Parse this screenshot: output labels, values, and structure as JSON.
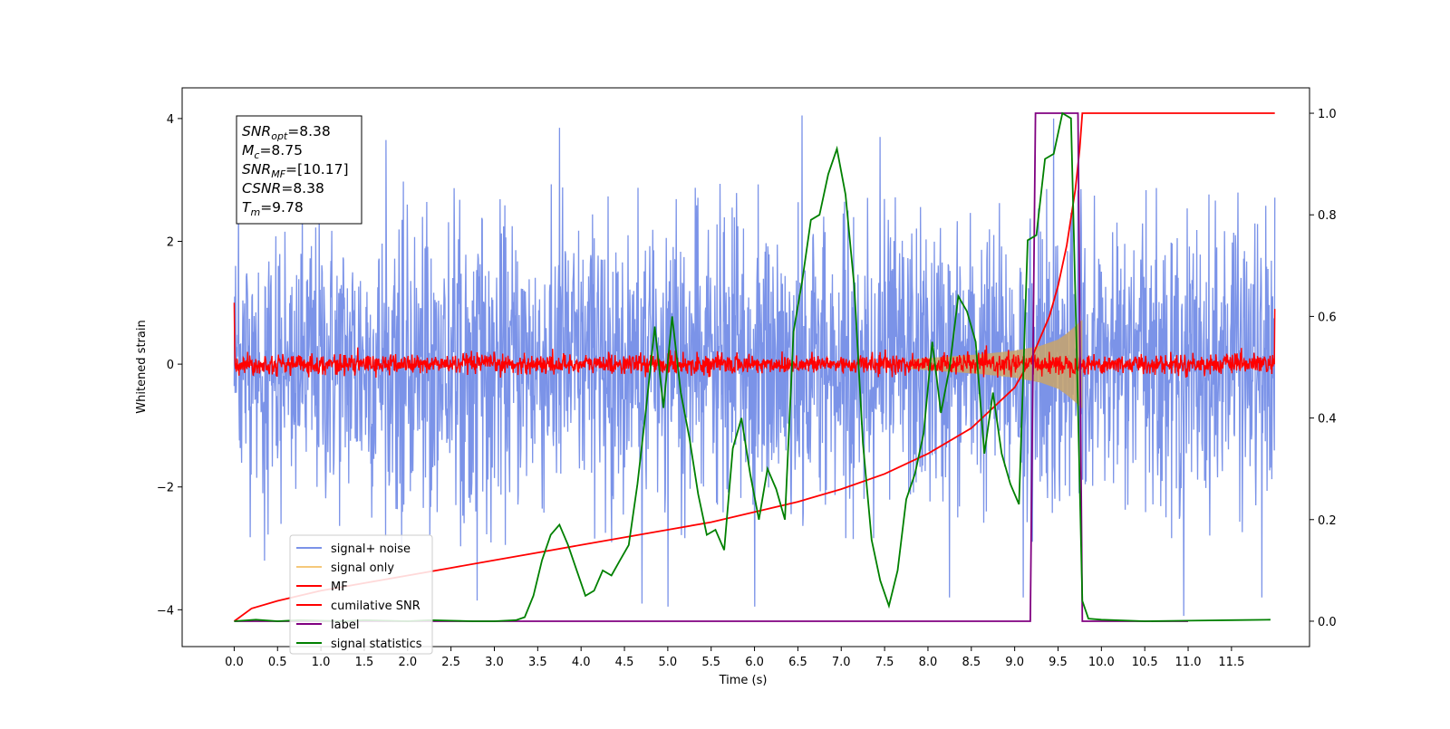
{
  "chart_data": {
    "type": "line",
    "title": "",
    "xlabel": "Time (s)",
    "ylabel": "Whitened strain",
    "y2label": "",
    "xlim": [
      -0.6,
      12.4
    ],
    "ylim": [
      -4.6,
      4.5
    ],
    "y2lim": [
      -0.05,
      1.05
    ],
    "x_ticks": [
      0.0,
      0.5,
      1.0,
      1.5,
      2.0,
      2.5,
      3.0,
      3.5,
      4.0,
      4.5,
      5.0,
      5.5,
      6.0,
      6.5,
      7.0,
      7.5,
      8.0,
      8.5,
      9.0,
      9.5,
      10.0,
      10.5,
      11.0,
      11.5
    ],
    "x_tick_labels": [
      "0.0",
      "0.5",
      "1.0",
      "1.5",
      "2.0",
      "2.5",
      "3.0",
      "3.5",
      "4.0",
      "4.5",
      "5.0",
      "5.5",
      "6.0",
      "6.5",
      "7.0",
      "7.5",
      "8.0",
      "8.5",
      "9.0",
      "9.5",
      "10.0",
      "10.5",
      "11.0",
      "11.5"
    ],
    "y_ticks": [
      -4,
      -2,
      0,
      2,
      4
    ],
    "y_tick_labels": [
      "−4",
      "−2",
      "0",
      "2",
      "4"
    ],
    "y2_ticks": [
      0.0,
      0.2,
      0.4,
      0.6,
      0.8,
      1.0
    ],
    "y2_tick_labels": [
      "0.0",
      "0.2",
      "0.4",
      "0.6",
      "0.8",
      "1.0"
    ],
    "grid": false,
    "legend_placement": "lower-left",
    "annotation": {
      "snr_opt": {
        "base": "SNR",
        "sub": "opt",
        "value": "=8.38"
      },
      "mc": {
        "base": "M",
        "sub": "c",
        "value": "=8.75"
      },
      "snr_mf": {
        "base": "SNR",
        "sub": "MF",
        "value": "=[10.17]"
      },
      "csnr": {
        "base": "CSNR",
        "sub": "",
        "value": "=8.38"
      },
      "tm": {
        "base": "T",
        "sub": "m",
        "value": "=9.78"
      }
    },
    "series": [
      {
        "name": "signal+ noise",
        "axis": "left",
        "color": "#7b93e8",
        "style": "noise",
        "x_range": [
          0.0,
          12.0
        ],
        "envelope_abs": 3.0,
        "peaks": [
          [
            0.05,
            2.65
          ],
          [
            0.35,
            -3.2
          ],
          [
            1.75,
            3.65
          ],
          [
            2.8,
            -3.85
          ],
          [
            3.75,
            3.85
          ],
          [
            4.7,
            -3.9
          ],
          [
            5.0,
            -3.95
          ],
          [
            6.0,
            -3.95
          ],
          [
            6.55,
            4.05
          ],
          [
            7.45,
            3.7
          ],
          [
            8.25,
            -3.8
          ],
          [
            9.1,
            -3.8
          ],
          [
            9.45,
            4.0
          ],
          [
            10.95,
            -4.1
          ],
          [
            11.85,
            -3.8
          ]
        ]
      },
      {
        "name": "signal only",
        "axis": "left",
        "color": "#f5c87a",
        "style": "chirp",
        "x": [
          7.8,
          8.2,
          8.6,
          9.0,
          9.3,
          9.5,
          9.6,
          9.7,
          9.76,
          9.78
        ],
        "amplitude": [
          0.08,
          0.12,
          0.16,
          0.22,
          0.3,
          0.4,
          0.5,
          0.62,
          0.7,
          0.72
        ]
      },
      {
        "name": "MF",
        "axis": "left",
        "color": "#ff0000",
        "style": "noise",
        "x_range": [
          0.0,
          12.0
        ],
        "envelope_abs": 0.22,
        "edges": [
          [
            0.0,
            1.0
          ],
          [
            12.0,
            0.9
          ]
        ]
      },
      {
        "name": "cumilative SNR",
        "axis": "right",
        "color": "#ff0000",
        "style": "line",
        "x": [
          0.0,
          0.2,
          0.5,
          1.0,
          1.5,
          2.0,
          2.5,
          3.0,
          3.5,
          4.0,
          4.5,
          5.0,
          5.5,
          6.0,
          6.5,
          7.0,
          7.5,
          8.0,
          8.5,
          9.0,
          9.2,
          9.4,
          9.5,
          9.6,
          9.7,
          9.75,
          9.78,
          10.5,
          11.0,
          11.5,
          12.0
        ],
        "values": [
          0.0,
          0.025,
          0.04,
          0.06,
          0.075,
          0.09,
          0.105,
          0.12,
          0.135,
          0.15,
          0.165,
          0.18,
          0.195,
          0.215,
          0.235,
          0.26,
          0.29,
          0.33,
          0.38,
          0.46,
          0.52,
          0.6,
          0.66,
          0.74,
          0.85,
          0.93,
          1.0,
          1.0,
          1.0,
          1.0,
          1.0
        ]
      },
      {
        "name": "label",
        "axis": "right",
        "color": "#800080",
        "style": "line",
        "x": [
          0.0,
          9.18,
          9.24,
          9.73,
          9.78,
          11.0
        ],
        "values": [
          0.0,
          0.0,
          1.0,
          1.0,
          0.0,
          0.0
        ]
      },
      {
        "name": "signal statistics",
        "axis": "right",
        "color": "#008000",
        "style": "line",
        "x": [
          0.0,
          0.25,
          0.5,
          0.75,
          1.0,
          1.25,
          1.5,
          1.75,
          2.0,
          2.25,
          2.5,
          2.75,
          3.0,
          3.25,
          3.35,
          3.45,
          3.55,
          3.65,
          3.75,
          3.85,
          3.95,
          4.05,
          4.15,
          4.25,
          4.35,
          4.45,
          4.55,
          4.65,
          4.75,
          4.85,
          4.95,
          5.05,
          5.15,
          5.25,
          5.35,
          5.45,
          5.55,
          5.65,
          5.75,
          5.85,
          5.95,
          6.05,
          6.15,
          6.25,
          6.35,
          6.45,
          6.55,
          6.65,
          6.75,
          6.85,
          6.95,
          7.05,
          7.15,
          7.25,
          7.35,
          7.45,
          7.55,
          7.65,
          7.75,
          7.85,
          7.95,
          8.05,
          8.15,
          8.25,
          8.35,
          8.45,
          8.55,
          8.65,
          8.75,
          8.85,
          8.95,
          9.05,
          9.15,
          9.25,
          9.35,
          9.45,
          9.55,
          9.65,
          9.72,
          9.78,
          9.85,
          10.0,
          10.5,
          11.0,
          11.5,
          11.95
        ],
        "values": [
          0.0,
          0.003,
          0.0,
          0.002,
          0.001,
          0.0,
          0.002,
          0.001,
          0.0,
          0.002,
          0.001,
          0.0,
          0.0,
          0.002,
          0.008,
          0.05,
          0.12,
          0.17,
          0.19,
          0.15,
          0.1,
          0.05,
          0.06,
          0.1,
          0.09,
          0.12,
          0.15,
          0.27,
          0.42,
          0.58,
          0.42,
          0.6,
          0.45,
          0.36,
          0.25,
          0.17,
          0.18,
          0.14,
          0.34,
          0.4,
          0.29,
          0.2,
          0.3,
          0.26,
          0.2,
          0.57,
          0.67,
          0.79,
          0.8,
          0.88,
          0.93,
          0.84,
          0.66,
          0.35,
          0.16,
          0.08,
          0.03,
          0.1,
          0.24,
          0.29,
          0.37,
          0.55,
          0.41,
          0.5,
          0.64,
          0.61,
          0.55,
          0.33,
          0.45,
          0.33,
          0.27,
          0.23,
          0.75,
          0.76,
          0.91,
          0.92,
          1.0,
          0.99,
          0.5,
          0.04,
          0.005,
          0.003,
          0.0,
          0.001,
          0.002,
          0.003
        ]
      }
    ]
  }
}
